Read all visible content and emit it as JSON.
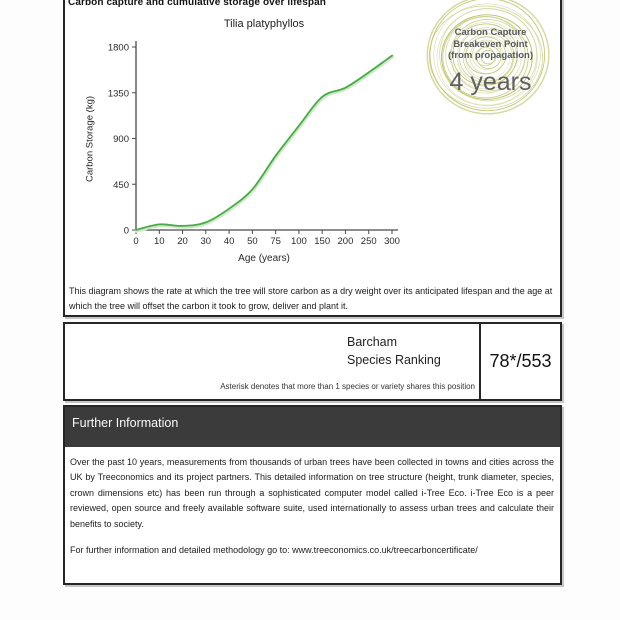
{
  "page": {
    "header_title": "Carbon capture and cumulative storage over lifespan"
  },
  "chart_data": {
    "type": "line",
    "title": "Tilia platyphyllos",
    "xlabel": "Age (years)",
    "ylabel": "Carbon Storage (kg)",
    "categories": [
      "0",
      "10",
      "20",
      "30",
      "40",
      "50",
      "75",
      "100",
      "150",
      "200",
      "250",
      "300"
    ],
    "values": [
      0,
      55,
      40,
      75,
      210,
      400,
      730,
      1025,
      1310,
      1400,
      1550,
      1715
    ],
    "yticks": [
      0,
      450,
      900,
      1350,
      1800
    ],
    "ylim": [
      0,
      1800
    ],
    "grid": false,
    "legend": null,
    "line_color": "#49ab45",
    "line_halo_color": "#cfe8c9",
    "axis_color": "#4a4a4a"
  },
  "badge": {
    "line1": "Carbon Capture",
    "line2": "Breakeven Point",
    "line3": "(from propagation)",
    "value": "4 years",
    "ring_color": "#ccd08a",
    "ring_accent_color": "#b9bd62"
  },
  "description": "This diagram shows the rate at which the tree will store carbon as a dry weight over its anticipated lifespan and the age at which the tree will offset the carbon it took to grow, deliver and plant it.",
  "ranking": {
    "label_line1": "Barcham",
    "label_line2": "Species Ranking",
    "value": "78*/553",
    "footnote": "Asterisk denotes that more than 1 species or variety shares this position"
  },
  "further_info": {
    "header": "Further Information",
    "paragraph": "Over the past 10 years, measurements from thousands of urban trees have been collected in towns and cities across the UK by Treeconomics and its project partners. This detailed information on tree structure (height, trunk diameter, species, crown dimensions etc) has been run through a sophisticated computer model called i-Tree Eco. i-Tree Eco is a peer reviewed, open source and freely available software suite, used internationally to assess urban trees and calculate their benefits to society.",
    "link_line": "For further information and detailed methodology go to: www.treeconomics.co.uk/treecarboncertificate/"
  }
}
